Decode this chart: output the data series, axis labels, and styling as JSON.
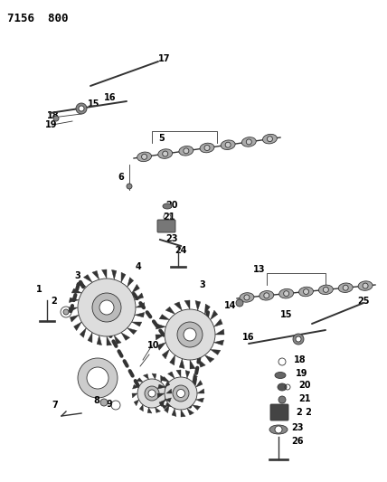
{
  "title": "7156 800",
  "bg_color": "#ffffff",
  "fg_color": "#000000",
  "figsize": [
    4.28,
    5.33
  ],
  "dpi": 100
}
